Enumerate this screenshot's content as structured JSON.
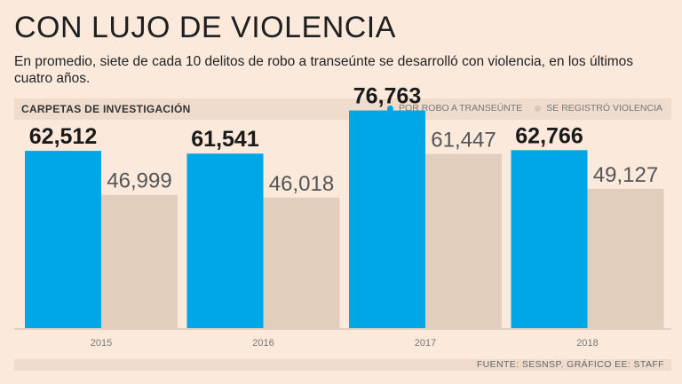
{
  "title": "CON LUJO DE VIOLENCIA",
  "subtitle": "En promedio, siete de cada 10 delitos de robo a transeúnte se desarrolló con violencia, en los últimos cuatro años.",
  "section_label": "CARPETAS DE INVESTIGACIÓN",
  "source": "FUENTE: SESNSP. GRÁFICO EE: STAFF",
  "colors": {
    "primary": "#00a7e6",
    "secondary": "#e1cebd",
    "axis": "#c9b8a8"
  },
  "chart_data": {
    "type": "bar",
    "title": "CARPETAS DE INVESTIGACIÓN",
    "categories": [
      "2015",
      "2016",
      "2017",
      "2018"
    ],
    "series": [
      {
        "name": "POR ROBO A TRANSEÚNTE",
        "values": [
          62512,
          61541,
          76763,
          62766
        ],
        "labels": [
          "62,512",
          "61,541",
          "76,763",
          "62,766"
        ]
      },
      {
        "name": "SE REGISTRÓ VIOLENCIA",
        "values": [
          46999,
          46018,
          61447,
          49127
        ],
        "labels": [
          "46,999",
          "46,018",
          "61,447",
          "49,127"
        ]
      }
    ],
    "ylim": [
      0,
      86000
    ],
    "xlabel": "",
    "ylabel": "",
    "legend": "top-right"
  }
}
